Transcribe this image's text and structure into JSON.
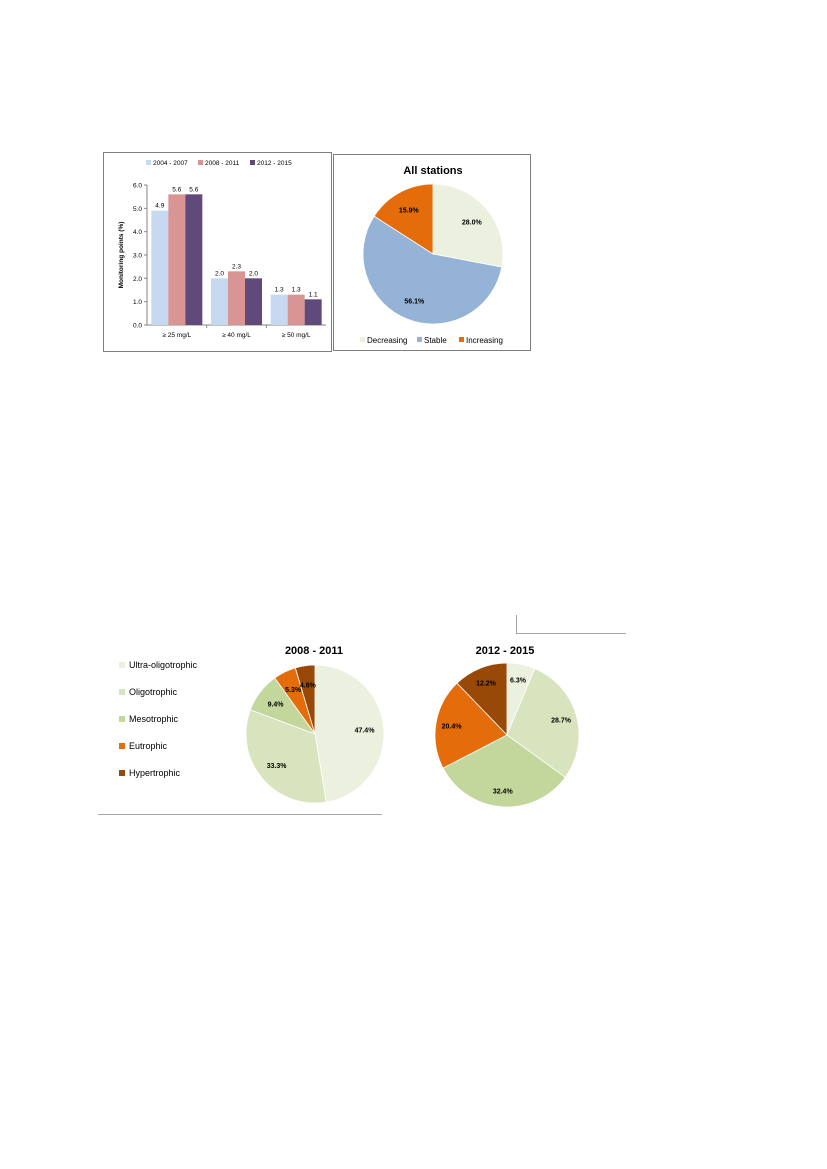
{
  "chart_data": [
    {
      "type": "bar",
      "categories": [
        "≥ 25 mg/L",
        "≥ 40 mg/L",
        "≥ 50 mg/L"
      ],
      "series": [
        {
          "name": "2004 - 2007",
          "values": [
            4.9,
            2.0,
            1.3
          ],
          "color": "#c6d9f1"
        },
        {
          "name": "2008 - 2011",
          "values": [
            5.6,
            2.3,
            1.3
          ],
          "color": "#d99594"
        },
        {
          "name": "2012 - 2015",
          "values": [
            5.6,
            2.0,
            1.1
          ],
          "color": "#604a7b"
        }
      ],
      "data_labels": [
        [
          "4.9",
          "2.0",
          "1.3"
        ],
        [
          "5.6",
          "2.3",
          "1.3"
        ],
        [
          "5.6",
          "2.0",
          "1.1"
        ]
      ],
      "ylabel": "Monitoring points (%)",
      "ylim": [
        0,
        6
      ],
      "yticks": [
        "0.0",
        "1.0",
        "2.0",
        "3.0",
        "4.0",
        "5.0",
        "6.0"
      ],
      "legend": "top",
      "grid": false
    },
    {
      "type": "pie",
      "title": "All stations",
      "slices": [
        {
          "label": "Decreasing",
          "value": 28.0,
          "text": "28.0%",
          "color": "#ebf1de"
        },
        {
          "label": "Stable",
          "value": 56.1,
          "text": "56.1%",
          "color": "#95b3d7"
        },
        {
          "label": "Increasing",
          "value": 15.9,
          "text": "15.9%",
          "color": "#e46c0a"
        }
      ],
      "legend": "bottom"
    },
    {
      "type": "pie",
      "title": "2008 - 2011",
      "slices": [
        {
          "label": "Ultra-oligotrophic",
          "value": 47.4,
          "text": "47.4%",
          "color": "#ebf1de"
        },
        {
          "label": "Oligotrophic",
          "value": 33.3,
          "text": "33.3%",
          "color": "#d7e4bd"
        },
        {
          "label": "Mesotrophic",
          "value": 9.4,
          "text": "9.4%",
          "color": "#c3d69b"
        },
        {
          "label": "Eutrophic",
          "value": 5.3,
          "text": "5.3%",
          "color": "#e46c0a"
        },
        {
          "label": "Hypertrophic",
          "value": 4.6,
          "text": "4.6%",
          "color": "#984807"
        }
      ],
      "legend": "left"
    },
    {
      "type": "pie",
      "title": "2012 - 2015",
      "slices": [
        {
          "label": "Ultra-oligotrophic",
          "value": 6.3,
          "text": "6.3%",
          "color": "#ebf1de"
        },
        {
          "label": "Oligotrophic",
          "value": 28.7,
          "text": "28.7%",
          "color": "#d7e4bd"
        },
        {
          "label": "Mesotrophic",
          "value": 32.4,
          "text": "32.4%",
          "color": "#c3d69b"
        },
        {
          "label": "Eutrophic",
          "value": 20.4,
          "text": "20.4%",
          "color": "#e46c0a"
        },
        {
          "label": "Hypertrophic",
          "value": 12.2,
          "text": "12.2%",
          "color": "#984807"
        }
      ]
    }
  ],
  "trophic_legend": [
    {
      "label": "Ultra-oligotrophic",
      "color": "#ebf1de"
    },
    {
      "label": "Oligotrophic",
      "color": "#d7e4bd"
    },
    {
      "label": "Mesotrophic",
      "color": "#c3d69b"
    },
    {
      "label": "Eutrophic",
      "color": "#e46c0a"
    },
    {
      "label": "Hypertrophic",
      "color": "#984807"
    }
  ]
}
